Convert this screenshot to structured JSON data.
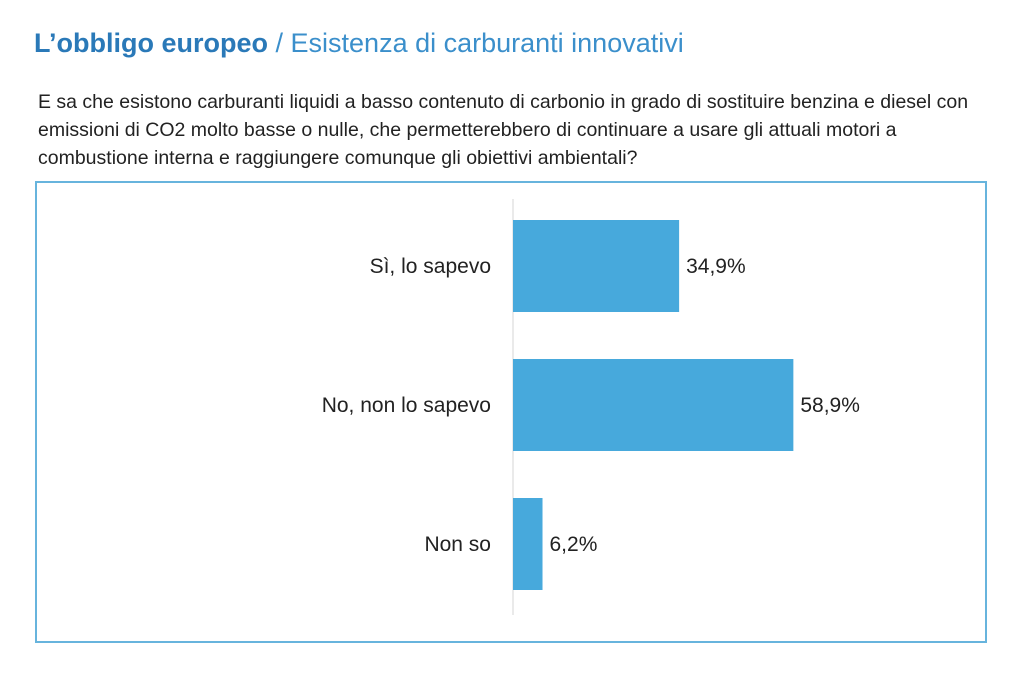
{
  "title": {
    "main": "L’obbligo europeo",
    "separator": "/",
    "sub": "Esistenza di carburanti innovativi"
  },
  "question": "E sa che esistono carburanti liquidi a basso contenuto di carbonio in grado di sostituire benzina e diesel con emissioni di CO2 molto basse o nulle, che permetterebbero di continuare a usare gli attuali motori a combustione interna e raggiungere comunque gli obiettivi ambientali?",
  "colors": {
    "bar": "#47a9dc",
    "title": "#2a79b8",
    "frame": "#67b4dd"
  },
  "chart_data": {
    "type": "bar",
    "orientation": "horizontal",
    "categories": [
      "Sì, lo sapevo",
      "No, non lo sapevo",
      "Non so"
    ],
    "values": [
      34.9,
      58.9,
      6.2
    ],
    "value_labels": [
      "34,9%",
      "58,9%",
      "6,2%"
    ],
    "unit": "%",
    "xlim": [
      0,
      100
    ],
    "grid": false,
    "legend": "none"
  }
}
